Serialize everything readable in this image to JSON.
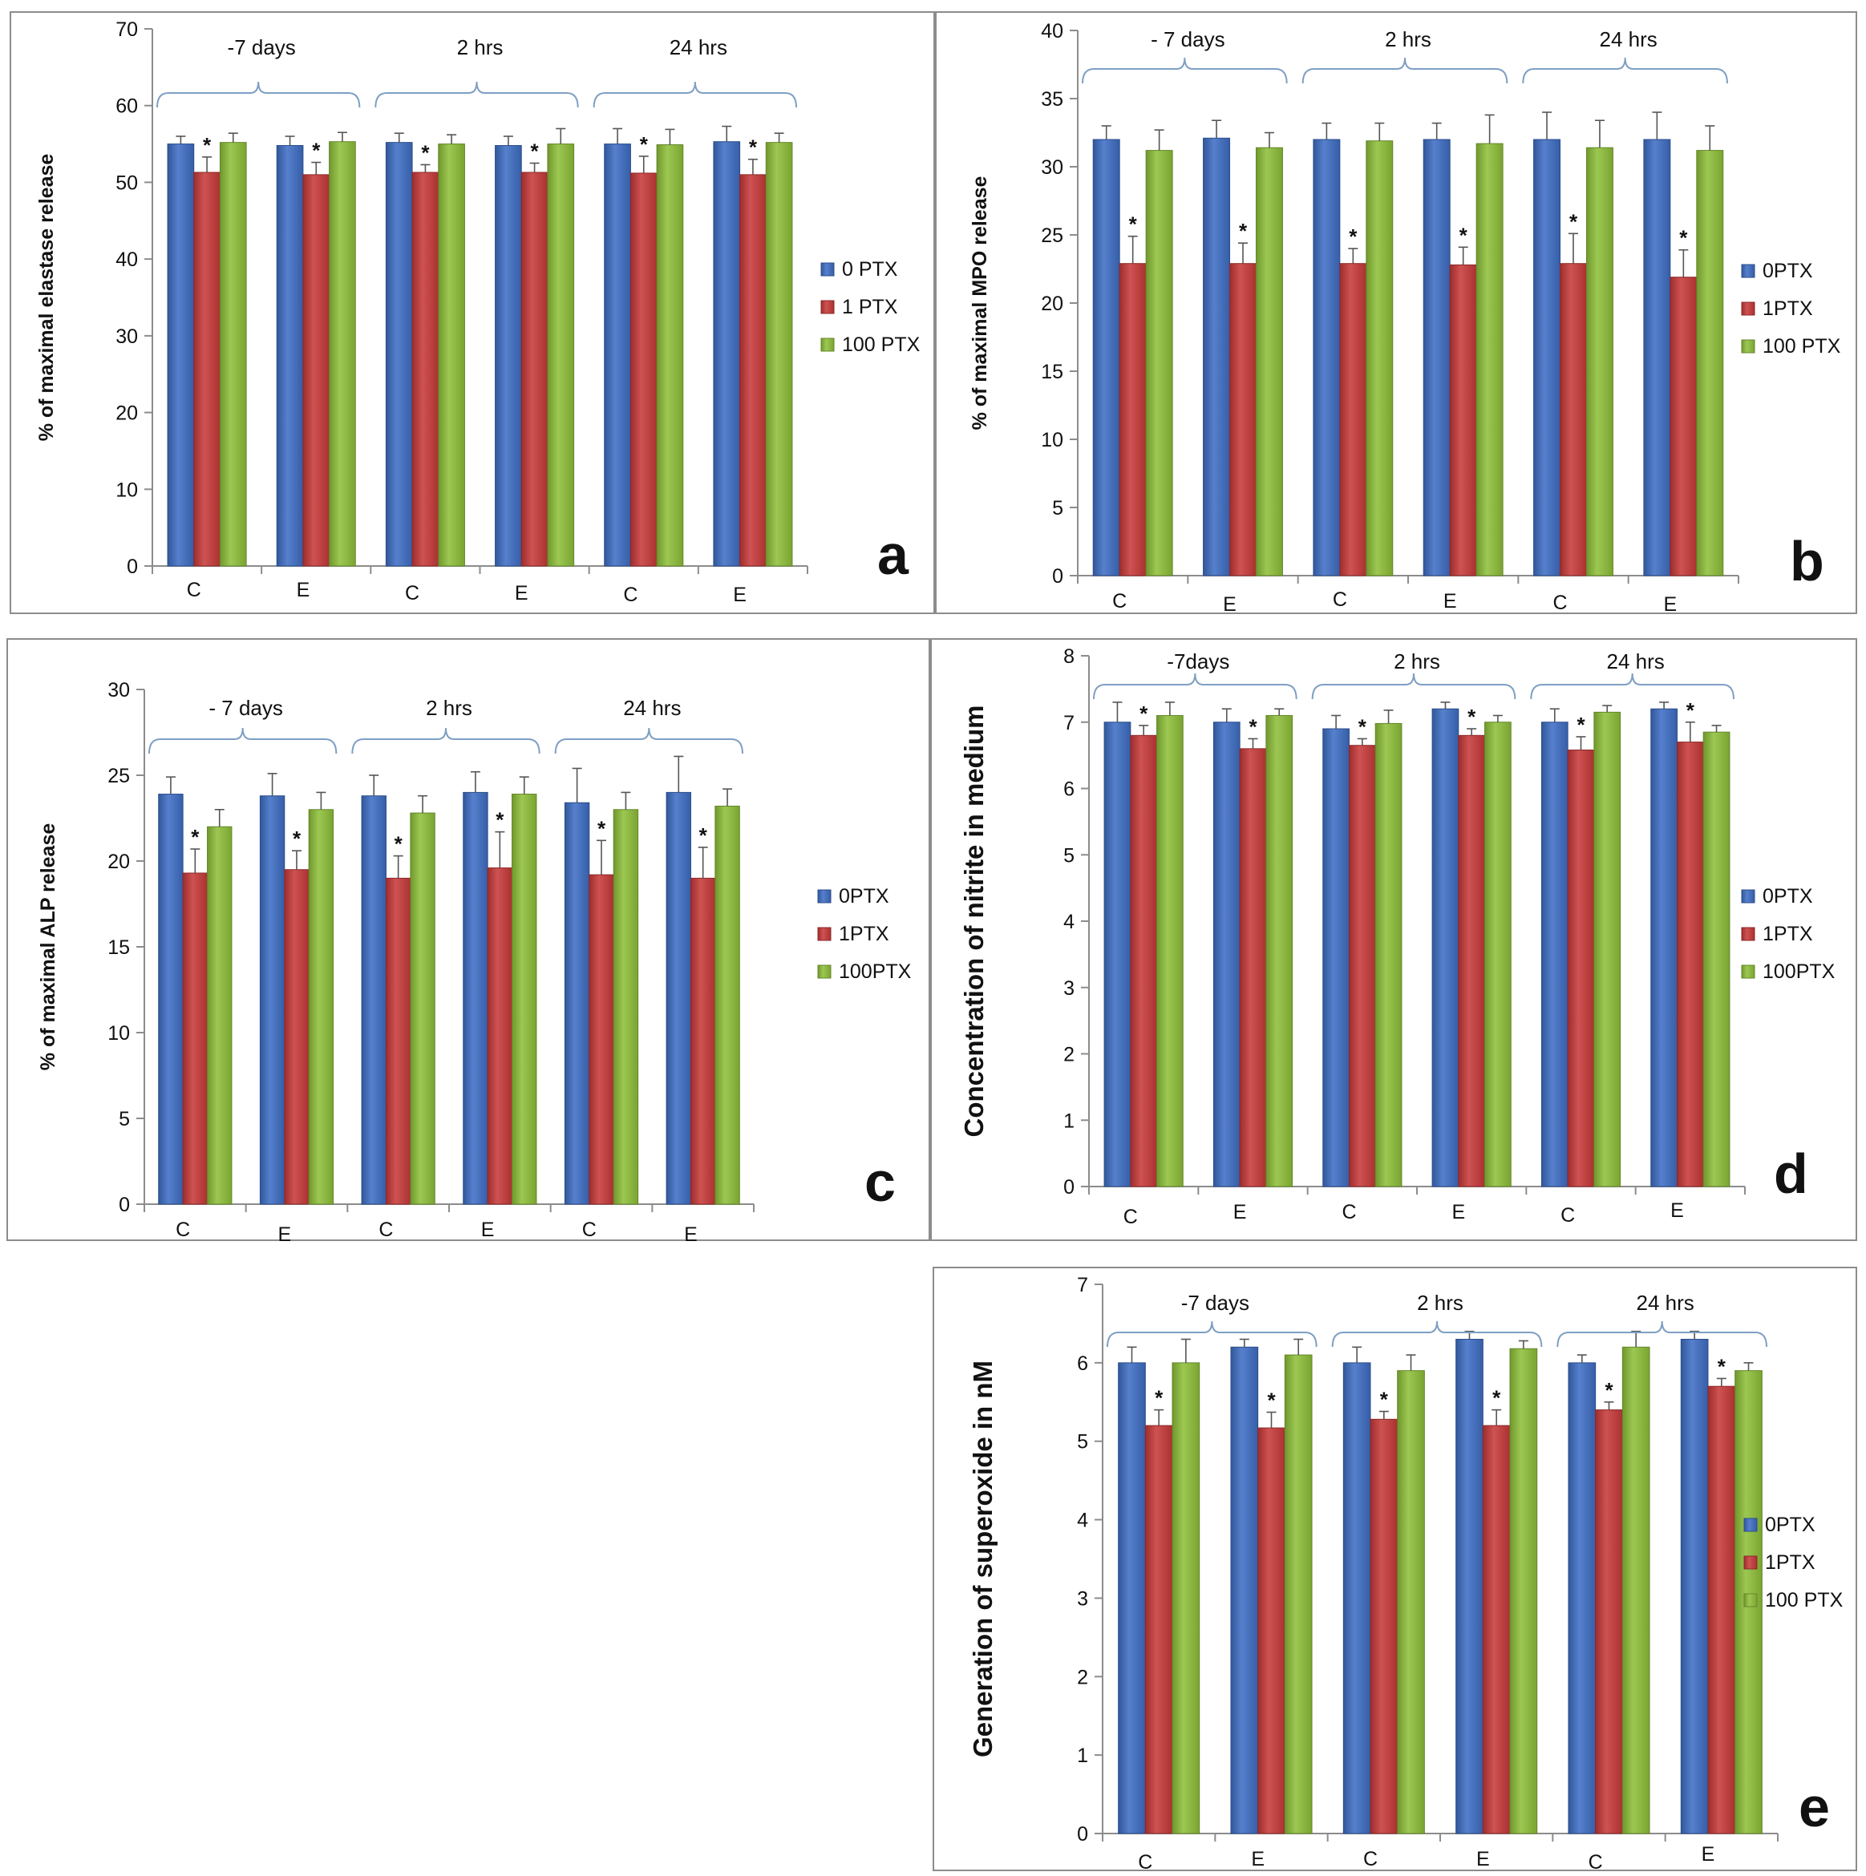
{
  "colors": {
    "series": [
      "#3f6fc6",
      "#c93a3a",
      "#8fc13a"
    ],
    "brace": "#7f9fc4",
    "axis": "#8c8c8c"
  },
  "chart_data": [
    {
      "id": "a",
      "type": "bar",
      "panel_label": "a",
      "ylabel": "% of maximal elastase release",
      "ylim": [
        0,
        70
      ],
      "ytick_step": 10,
      "categories": [
        "C",
        "E",
        "C",
        "E",
        "C",
        "E"
      ],
      "groups": [
        {
          "label": "-7 days",
          "categories": [
            0,
            1
          ]
        },
        {
          "label": "2 hrs",
          "categories": [
            2,
            3
          ]
        },
        {
          "label": "24 hrs",
          "categories": [
            4,
            5
          ]
        }
      ],
      "series": [
        {
          "name": "0 PTX",
          "values": [
            55,
            54.8,
            55.2,
            54.8,
            55,
            55.3
          ],
          "errors": [
            1,
            1.2,
            1.2,
            1.2,
            2,
            2
          ]
        },
        {
          "name": "1 PTX",
          "values": [
            51.3,
            51,
            51.3,
            51.3,
            51.2,
            51
          ],
          "errors": [
            2,
            1.6,
            1,
            1.2,
            2.2,
            2
          ]
        },
        {
          "name": "100 PTX",
          "values": [
            55.2,
            55.3,
            55,
            55,
            54.9,
            55.2
          ],
          "errors": [
            1.2,
            1.2,
            1.2,
            2,
            2,
            1.2
          ]
        }
      ],
      "significance": {
        "series": 1,
        "marker": "*"
      },
      "legend": [
        "0 PTX",
        "1 PTX",
        "100 PTX"
      ]
    },
    {
      "id": "b",
      "type": "bar",
      "panel_label": "b",
      "ylabel": "% of maximal MPO release",
      "ylim": [
        0,
        40
      ],
      "ytick_step": 5,
      "categories": [
        "C",
        "E",
        "C",
        "E",
        "C",
        "E"
      ],
      "groups": [
        {
          "label": "- 7 days",
          "categories": [
            0,
            1
          ]
        },
        {
          "label": "2 hrs",
          "categories": [
            2,
            3
          ]
        },
        {
          "label": "24 hrs",
          "categories": [
            4,
            5
          ]
        }
      ],
      "series": [
        {
          "name": "0PTX",
          "values": [
            32,
            32.1,
            32,
            32,
            32,
            32
          ],
          "errors": [
            1,
            1.3,
            1.2,
            1.2,
            2,
            2
          ]
        },
        {
          "name": "1PTX",
          "values": [
            22.9,
            22.9,
            22.9,
            22.8,
            22.9,
            21.9
          ],
          "errors": [
            2,
            1.5,
            1.1,
            1.3,
            2.2,
            2
          ]
        },
        {
          "name": "100 PTX",
          "values": [
            31.2,
            31.4,
            31.9,
            31.7,
            31.4,
            31.2
          ],
          "errors": [
            1.5,
            1.1,
            1.3,
            2.1,
            2,
            1.8
          ]
        }
      ],
      "significance": {
        "series": 1,
        "marker": "*"
      },
      "legend": [
        "0PTX",
        "1PTX",
        "100 PTX"
      ]
    },
    {
      "id": "c",
      "type": "bar",
      "panel_label": "c",
      "ylabel": "% of maximal ALP release",
      "ylim": [
        0,
        30
      ],
      "ytick_step": 5,
      "categories": [
        "C",
        "E",
        "C",
        "E",
        "C",
        "E"
      ],
      "groups": [
        {
          "label": "- 7 days",
          "categories": [
            0,
            1
          ]
        },
        {
          "label": "2 hrs",
          "categories": [
            2,
            3
          ]
        },
        {
          "label": "24 hrs",
          "categories": [
            4,
            5
          ]
        }
      ],
      "series": [
        {
          "name": "0PTX",
          "values": [
            23.9,
            23.8,
            23.8,
            24,
            23.4,
            24
          ],
          "errors": [
            1,
            1.3,
            1.2,
            1.2,
            2,
            2.1
          ]
        },
        {
          "name": "1PTX",
          "values": [
            19.3,
            19.5,
            19,
            19.6,
            19.2,
            19
          ],
          "errors": [
            1.4,
            1.1,
            1.3,
            2.1,
            2,
            1.8
          ]
        },
        {
          "name": "100PTX",
          "values": [
            22,
            23,
            22.8,
            23.9,
            23,
            23.2
          ],
          "errors": [
            1,
            1,
            1,
            1,
            1,
            1
          ]
        }
      ],
      "significance": {
        "series": 1,
        "marker": "*"
      },
      "legend": [
        "0PTX",
        "1PTX",
        "100PTX"
      ]
    },
    {
      "id": "d",
      "type": "bar",
      "panel_label": "d",
      "ylabel": "Concentration of nitrite in medium",
      "ylim": [
        0,
        8
      ],
      "ytick_step": 1,
      "categories": [
        "C",
        "E",
        "C",
        "E",
        "C",
        "E"
      ],
      "groups": [
        {
          "label": "-7days",
          "categories": [
            0,
            1
          ]
        },
        {
          "label": "2 hrs",
          "categories": [
            2,
            3
          ]
        },
        {
          "label": "24 hrs",
          "categories": [
            4,
            5
          ]
        }
      ],
      "series": [
        {
          "name": "0PTX",
          "values": [
            7,
            7,
            6.9,
            7.2,
            7,
            7.2
          ],
          "errors": [
            0.3,
            0.2,
            0.2,
            0.1,
            0.2,
            0.1
          ]
        },
        {
          "name": "1PTX",
          "values": [
            6.8,
            6.6,
            6.65,
            6.8,
            6.58,
            6.7
          ],
          "errors": [
            0.15,
            0.15,
            0.1,
            0.1,
            0.2,
            0.3
          ]
        },
        {
          "name": "100PTX",
          "values": [
            7.1,
            7.1,
            6.98,
            7,
            7.15,
            6.85
          ],
          "errors": [
            0.2,
            0.1,
            0.2,
            0.1,
            0.1,
            0.1
          ]
        }
      ],
      "significance": {
        "series": 1,
        "marker": "*"
      },
      "legend": [
        "0PTX",
        "1PTX",
        "100PTX"
      ]
    },
    {
      "id": "e",
      "type": "bar",
      "panel_label": "e",
      "ylabel": "Generation of superoxide  in nM",
      "ylim": [
        0,
        7
      ],
      "ytick_step": 1,
      "categories": [
        "C",
        "E",
        "C",
        "E",
        "C",
        "E"
      ],
      "groups": [
        {
          "label": "-7 days",
          "categories": [
            0,
            1
          ]
        },
        {
          "label": "2 hrs",
          "categories": [
            2,
            3
          ]
        },
        {
          "label": "24 hrs",
          "categories": [
            4,
            5
          ]
        }
      ],
      "series": [
        {
          "name": "0PTX",
          "values": [
            6,
            6.2,
            6,
            6.3,
            6,
            6.3
          ],
          "errors": [
            0.2,
            0.1,
            0.2,
            0.1,
            0.1,
            0.1
          ]
        },
        {
          "name": "1PTX",
          "values": [
            5.2,
            5.17,
            5.28,
            5.2,
            5.4,
            5.7
          ],
          "errors": [
            0.2,
            0.2,
            0.1,
            0.2,
            0.1,
            0.1
          ]
        },
        {
          "name": "100 PTX",
          "values": [
            6,
            6.1,
            5.9,
            6.18,
            6.2,
            5.9
          ],
          "errors": [
            0.3,
            0.2,
            0.2,
            0.1,
            0.2,
            0.1
          ]
        }
      ],
      "significance": {
        "series": 1,
        "marker": "*"
      },
      "legend": [
        "0PTX",
        "1PTX",
        "100 PTX"
      ]
    }
  ]
}
